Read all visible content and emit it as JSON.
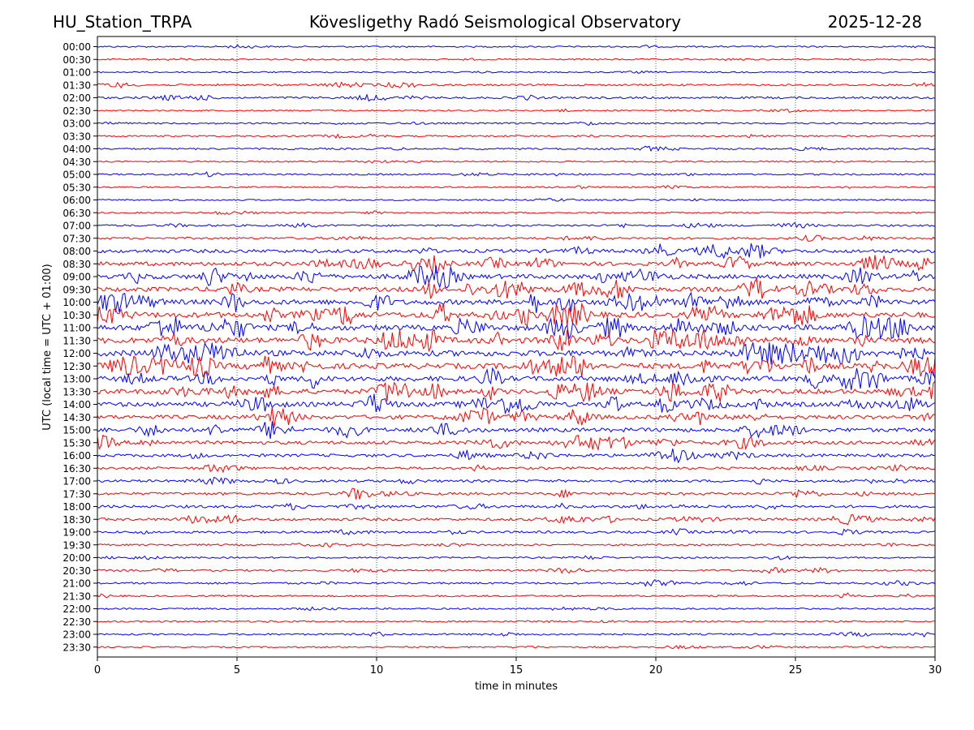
{
  "header": {
    "station": "HU_Station_TRPA",
    "observatory": "Kövesligethy Radó Seismological Observatory",
    "date": "2025-12-28"
  },
  "chart_data": {
    "type": "helicorder",
    "title": "Kövesligethy Radó Seismological Observatory",
    "xlabel": "time in minutes",
    "ylabel": "UTC (local time = UTC + 01:00)",
    "xlim": [
      0,
      30
    ],
    "x_ticks": [
      0,
      5,
      10,
      15,
      20,
      25,
      30
    ],
    "grid": "vertical dotted at x ticks",
    "colors": [
      "#0000ff",
      "#ff0000"
    ],
    "rows": [
      {
        "label": "00:00",
        "activity": 0.1
      },
      {
        "label": "00:30",
        "activity": 0.1
      },
      {
        "label": "01:00",
        "activity": 0.08
      },
      {
        "label": "01:30",
        "activity": 0.18
      },
      {
        "label": "02:00",
        "activity": 0.22
      },
      {
        "label": "02:30",
        "activity": 0.1
      },
      {
        "label": "03:00",
        "activity": 0.12
      },
      {
        "label": "03:30",
        "activity": 0.12
      },
      {
        "label": "04:00",
        "activity": 0.14
      },
      {
        "label": "04:30",
        "activity": 0.1
      },
      {
        "label": "05:00",
        "activity": 0.14
      },
      {
        "label": "05:30",
        "activity": 0.1
      },
      {
        "label": "06:00",
        "activity": 0.1
      },
      {
        "label": "06:30",
        "activity": 0.1
      },
      {
        "label": "07:00",
        "activity": 0.18
      },
      {
        "label": "07:30",
        "activity": 0.22
      },
      {
        "label": "08:00",
        "activity": 0.5
      },
      {
        "label": "08:30",
        "activity": 0.6
      },
      {
        "label": "09:00",
        "activity": 0.7
      },
      {
        "label": "09:30",
        "activity": 0.7
      },
      {
        "label": "10:00",
        "activity": 0.8
      },
      {
        "label": "10:30",
        "activity": 0.9
      },
      {
        "label": "11:00",
        "activity": 0.9
      },
      {
        "label": "11:30",
        "activity": 0.95
      },
      {
        "label": "12:00",
        "activity": 0.95
      },
      {
        "label": "12:30",
        "activity": 0.9
      },
      {
        "label": "13:00",
        "activity": 0.8
      },
      {
        "label": "13:30",
        "activity": 0.75
      },
      {
        "label": "14:00",
        "activity": 0.7
      },
      {
        "label": "14:30",
        "activity": 0.6
      },
      {
        "label": "15:00",
        "activity": 0.6
      },
      {
        "label": "15:30",
        "activity": 0.5
      },
      {
        "label": "16:00",
        "activity": 0.4
      },
      {
        "label": "16:30",
        "activity": 0.3
      },
      {
        "label": "17:00",
        "activity": 0.3
      },
      {
        "label": "17:30",
        "activity": 0.35
      },
      {
        "label": "18:00",
        "activity": 0.35
      },
      {
        "label": "18:30",
        "activity": 0.35
      },
      {
        "label": "19:00",
        "activity": 0.25
      },
      {
        "label": "19:30",
        "activity": 0.15
      },
      {
        "label": "20:00",
        "activity": 0.12
      },
      {
        "label": "20:30",
        "activity": 0.18
      },
      {
        "label": "21:00",
        "activity": 0.2
      },
      {
        "label": "21:30",
        "activity": 0.15
      },
      {
        "label": "22:00",
        "activity": 0.12
      },
      {
        "label": "22:30",
        "activity": 0.12
      },
      {
        "label": "23:00",
        "activity": 0.15
      },
      {
        "label": "23:30",
        "activity": 0.1
      }
    ]
  }
}
